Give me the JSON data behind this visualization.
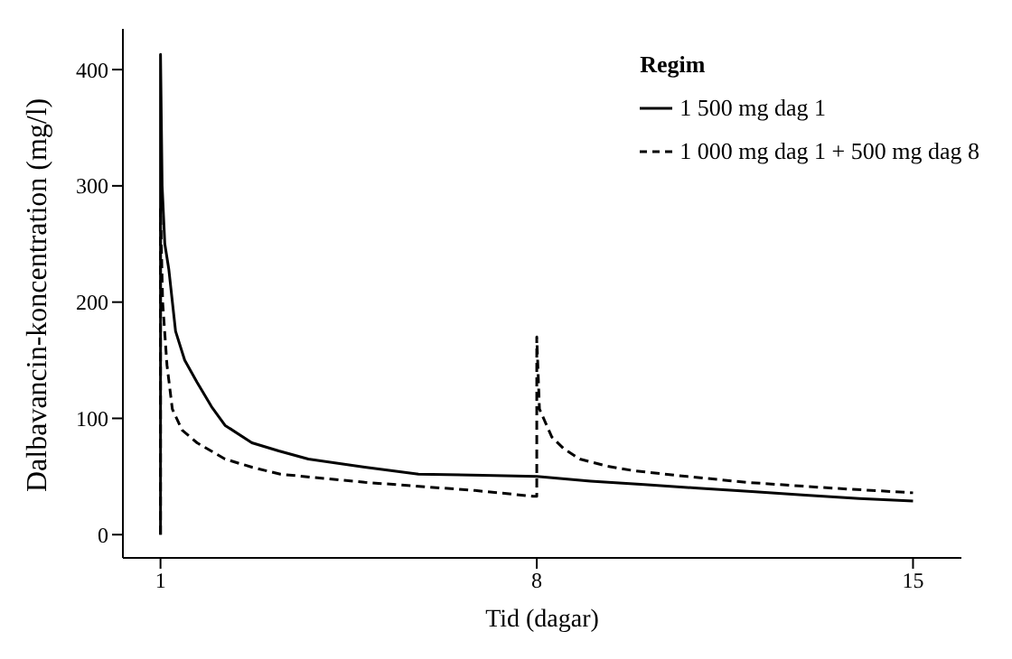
{
  "chart_data": {
    "type": "line",
    "xlabel": "Tid (dagar)",
    "ylabel": "Dalbavancin-koncentration (mg/l)",
    "legend_title": "Regim",
    "legend": "top right",
    "grid": false,
    "marker": "none",
    "xlim": [
      0.3,
      15.9
    ],
    "xticks": [
      1,
      8,
      15
    ],
    "ylim": [
      -20,
      435
    ],
    "yticks": [
      0,
      100,
      200,
      300,
      400
    ],
    "series": [
      {
        "name": "1 500 mg dag 1",
        "color": "#000000",
        "line_style": "solid",
        "x": [
          1,
          1,
          1.03,
          1.08,
          1.155,
          1.28,
          1.45,
          1.68,
          1.95,
          2.2,
          2.7,
          3.2,
          3.75,
          4.8,
          5.8,
          7,
          8,
          9,
          10,
          11,
          12,
          13,
          14,
          15
        ],
        "values": [
          0,
          413,
          300,
          250,
          228,
          175,
          150,
          131,
          110,
          94,
          79,
          72,
          65,
          58,
          52,
          51,
          50,
          46,
          43,
          40,
          37,
          34,
          31,
          29
        ]
      },
      {
        "name": "1 000 mg dag 1 + 500 mg dag 8",
        "color": "#000000",
        "line_style": "dashed",
        "x": [
          1,
          1,
          1.04,
          1.12,
          1.22,
          1.4,
          1.68,
          2.2,
          2.7,
          3.23,
          4.8,
          6.85,
          7.93,
          8,
          8,
          8.05,
          8.28,
          8.5,
          8.8,
          9.3,
          9.8,
          10.8,
          11.9,
          13.5,
          15
        ],
        "values": [
          0,
          280,
          200,
          146,
          108,
          90,
          79,
          65,
          58,
          52,
          45,
          38,
          33,
          33,
          170,
          108,
          84,
          74,
          65,
          59,
          55,
          50,
          45,
          40,
          36
        ]
      }
    ]
  }
}
